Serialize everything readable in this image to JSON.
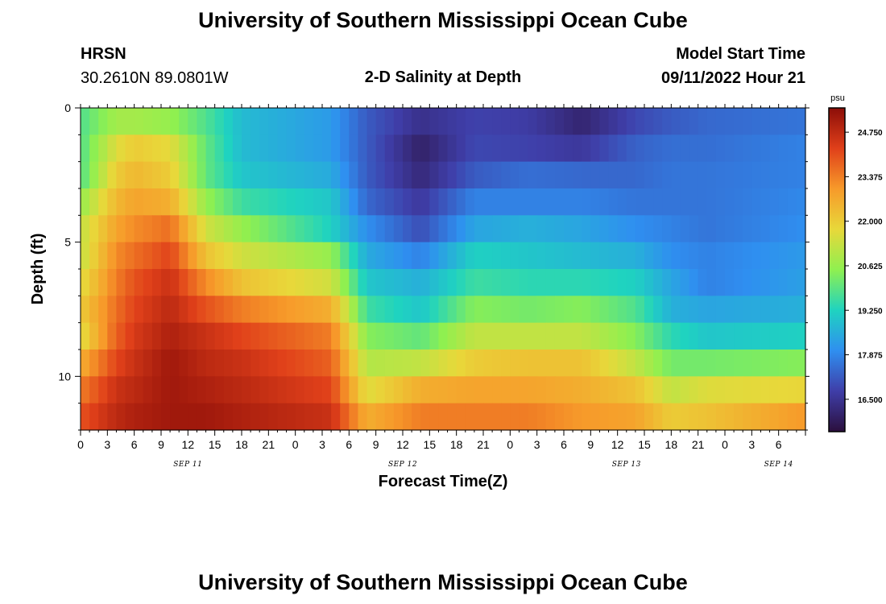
{
  "header": {
    "title": "University of Southern Mississippi Ocean Cube",
    "station": "HRSN",
    "coords": "30.2610N  89.0801W",
    "subtitle": "2-D Salinity at Depth",
    "start_label": "Model Start Time",
    "start_value": "09/11/2022 Hour 21"
  },
  "footer": {
    "title": "University of Southern Mississippi Ocean Cube"
  },
  "colors": {
    "ramp": [
      "#2b0f3d",
      "#3f3ea8",
      "#2f8ff0",
      "#1fd3c0",
      "#8ff050",
      "#e8d83a",
      "#f79a2a",
      "#e0401a",
      "#8c0d08"
    ]
  },
  "chart_data": {
    "type": "heatmap",
    "title": "2-D Salinity at Depth",
    "xlabel": "Forecast Time(Z)",
    "ylabel": "Depth (ft)",
    "x_range_hours": [
      0,
      81
    ],
    "y_range_ft": [
      0,
      12
    ],
    "y_ticks": [
      0,
      5,
      10
    ],
    "x_tick_labels": [
      "0",
      "3",
      "6",
      "9",
      "12",
      "15",
      "18",
      "21",
      "0",
      "3",
      "6",
      "9",
      "12",
      "15",
      "18",
      "21",
      "0",
      "3",
      "6",
      "9",
      "12",
      "15",
      "18",
      "21",
      "0",
      "3",
      "6"
    ],
    "day_labels": [
      {
        "label": "SEP 11",
        "hour": 12
      },
      {
        "label": "SEP 12",
        "hour": 36
      },
      {
        "label": "SEP 13",
        "hour": 61
      },
      {
        "label": "SEP 14",
        "hour": 78
      }
    ],
    "colorbar": {
      "unit": "psu",
      "min": 15.5,
      "max": 25.5,
      "ticks": [
        "24.750",
        "23.375",
        "22.000",
        "20.625",
        "19.250",
        "17.875",
        "16.500"
      ]
    },
    "depth_layers_ft": [
      0.5,
      1.5,
      2.5,
      3.5,
      4.5,
      5.5,
      6.5,
      7.5,
      8.5,
      9.5,
      10.5,
      11.5
    ],
    "series": [
      {
        "name": "0.5 ft",
        "x": [
          0,
          4,
          6,
          10,
          14,
          18,
          28,
          32,
          38,
          44,
          50,
          56,
          62,
          66,
          70,
          81
        ],
        "values": [
          19.8,
          20.8,
          20.8,
          20.6,
          19.8,
          18.8,
          18.2,
          17.2,
          16.4,
          16.8,
          16.7,
          16.1,
          16.9,
          17.2,
          17.4,
          17.6
        ]
      },
      {
        "name": "1.5 ft",
        "x": [
          0,
          4,
          6,
          10,
          14,
          18,
          28,
          32,
          38,
          44,
          50,
          56,
          62,
          66,
          70,
          81
        ],
        "values": [
          19.8,
          21.6,
          22.0,
          21.7,
          20.0,
          18.8,
          18.2,
          17.2,
          16.0,
          16.9,
          16.8,
          16.6,
          17.3,
          17.5,
          17.5,
          17.8
        ]
      },
      {
        "name": "2.5 ft",
        "x": [
          0,
          4,
          6,
          10,
          14,
          18,
          28,
          32,
          38,
          44,
          50,
          56,
          62,
          66,
          70,
          81
        ],
        "values": [
          19.8,
          22.0,
          22.4,
          22.0,
          20.0,
          19.0,
          18.5,
          17.2,
          16.2,
          17.2,
          17.5,
          17.4,
          17.4,
          17.6,
          17.6,
          17.8
        ]
      },
      {
        "name": "3.5 ft",
        "x": [
          0,
          4,
          6,
          10,
          14,
          18,
          28,
          32,
          38,
          44,
          50,
          56,
          62,
          66,
          70,
          81
        ],
        "values": [
          20.6,
          22.4,
          22.8,
          22.6,
          20.6,
          19.6,
          19.0,
          17.4,
          16.6,
          17.8,
          17.8,
          17.8,
          17.6,
          17.6,
          17.6,
          17.9
        ]
      },
      {
        "name": "4.5 ft",
        "x": [
          0,
          4,
          6,
          10,
          14,
          18,
          28,
          32,
          38,
          44,
          50,
          56,
          62,
          66,
          70,
          81
        ],
        "values": [
          21.2,
          22.8,
          23.2,
          23.6,
          21.4,
          20.6,
          19.2,
          18.0,
          17.0,
          18.4,
          18.6,
          18.4,
          18.0,
          17.8,
          17.6,
          18.0
        ]
      },
      {
        "name": "5.5 ft",
        "x": [
          0,
          4,
          6,
          10,
          14,
          18,
          28,
          32,
          38,
          44,
          50,
          56,
          62,
          66,
          70,
          81
        ],
        "values": [
          21.2,
          23.2,
          23.6,
          24.2,
          22.2,
          21.4,
          20.6,
          18.5,
          17.8,
          19.2,
          19.0,
          18.8,
          18.6,
          18.0,
          17.8,
          18.2
        ]
      },
      {
        "name": "6.5 ft",
        "x": [
          0,
          4,
          6,
          10,
          14,
          18,
          28,
          32,
          38,
          44,
          50,
          56,
          62,
          66,
          70,
          81
        ],
        "values": [
          21.6,
          23.4,
          24.0,
          24.6,
          23.2,
          22.2,
          21.4,
          19.0,
          18.6,
          19.6,
          19.4,
          19.4,
          19.2,
          18.4,
          17.8,
          18.3
        ]
      },
      {
        "name": "7.5 ft",
        "x": [
          0,
          4,
          6,
          10,
          14,
          18,
          28,
          32,
          38,
          44,
          50,
          56,
          62,
          66,
          70,
          81
        ],
        "values": [
          22.0,
          23.6,
          24.2,
          24.8,
          24.0,
          23.4,
          22.6,
          19.6,
          19.0,
          20.4,
          20.2,
          20.4,
          19.8,
          18.6,
          18.4,
          18.6
        ]
      },
      {
        "name": "8.5 ft",
        "x": [
          0,
          4,
          6,
          10,
          14,
          18,
          28,
          32,
          38,
          44,
          50,
          56,
          62,
          66,
          70,
          81
        ],
        "values": [
          21.6,
          23.8,
          24.4,
          25.0,
          24.6,
          24.2,
          23.4,
          20.4,
          20.0,
          21.2,
          21.2,
          21.2,
          20.4,
          19.4,
          19.0,
          19.2
        ]
      },
      {
        "name": "9.5 ft",
        "x": [
          0,
          4,
          6,
          10,
          14,
          18,
          28,
          32,
          38,
          44,
          50,
          56,
          62,
          66,
          70,
          81
        ],
        "values": [
          22.6,
          24.2,
          24.6,
          25.2,
          24.8,
          24.6,
          23.8,
          21.0,
          21.2,
          22.0,
          22.2,
          22.2,
          21.2,
          20.2,
          20.2,
          20.4
        ]
      },
      {
        "name": "10.5 ft",
        "x": [
          0,
          4,
          6,
          10,
          14,
          18,
          28,
          32,
          38,
          44,
          50,
          56,
          62,
          66,
          70,
          81
        ],
        "values": [
          23.4,
          24.6,
          24.8,
          25.2,
          25.0,
          24.8,
          24.2,
          21.6,
          22.6,
          22.8,
          22.8,
          22.6,
          22.2,
          21.2,
          21.6,
          21.8
        ]
      },
      {
        "name": "11.5 ft",
        "x": [
          0,
          4,
          6,
          10,
          14,
          18,
          28,
          32,
          38,
          44,
          50,
          56,
          62,
          66,
          70,
          81
        ],
        "values": [
          24.0,
          24.8,
          25.0,
          25.2,
          25.2,
          25.0,
          24.6,
          22.6,
          23.4,
          23.4,
          23.4,
          23.0,
          22.8,
          22.0,
          22.2,
          23.0
        ]
      }
    ]
  }
}
